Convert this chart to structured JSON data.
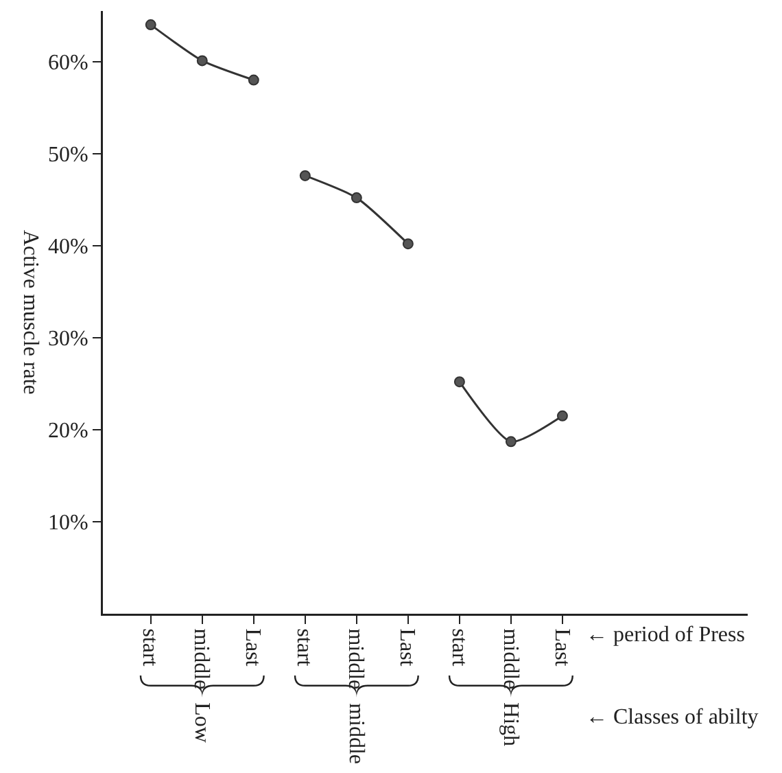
{
  "chart_data": {
    "type": "line",
    "ylabel": "Active muscle rate",
    "categories": [
      "start",
      "middle",
      "Last",
      "start",
      "middle",
      "Last",
      "start",
      "middle",
      "Last"
    ],
    "series": [
      {
        "color": "#333333",
        "values": [
          64.0,
          60.1,
          58.0,
          null,
          null,
          null,
          null,
          null,
          null
        ]
      },
      {
        "color": "#333333",
        "values": [
          null,
          null,
          null,
          47.6,
          45.2,
          40.2,
          null,
          null,
          null
        ]
      },
      {
        "color": "#333333",
        "values": [
          null,
          null,
          null,
          null,
          null,
          null,
          25.2,
          18.7,
          21.5
        ]
      }
    ],
    "ylim": [
      0,
      65.5
    ],
    "yticks": [
      {
        "value": 10,
        "label": "10%"
      },
      {
        "value": 20,
        "label": "20%"
      },
      {
        "value": 30,
        "label": "30%"
      },
      {
        "value": 40,
        "label": "40%"
      },
      {
        "value": 50,
        "label": "50%"
      },
      {
        "value": 60,
        "label": "60%"
      }
    ],
    "annotations": [
      "Low",
      "middle",
      "High",
      "← period of Press",
      "← Classes of abilty"
    ],
    "grid": false,
    "marker": "circle",
    "line_style": "solid"
  }
}
